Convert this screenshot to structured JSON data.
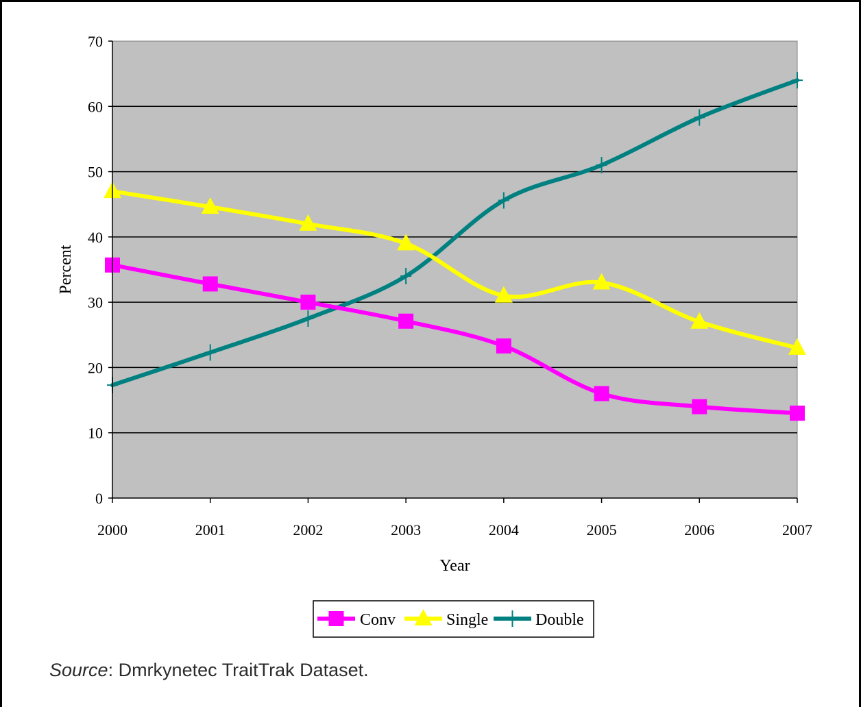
{
  "chart_data": {
    "type": "line",
    "title": "",
    "xlabel": "Year",
    "ylabel": "Percent",
    "ylim": [
      0,
      70
    ],
    "yticks": [
      0,
      10,
      20,
      30,
      40,
      50,
      60,
      70
    ],
    "categories": [
      "2000",
      "2001",
      "2002",
      "2003",
      "2004",
      "2005",
      "2006",
      "2007"
    ],
    "series": [
      {
        "name": "Conv",
        "color": "#ff00ff",
        "marker": "square",
        "values": [
          35.7,
          32.8,
          30.0,
          27.1,
          23.3,
          16.0,
          14.0,
          13.0
        ]
      },
      {
        "name": "Single",
        "color": "#ffff00",
        "marker": "triangle",
        "values": [
          47.0,
          44.6,
          42.0,
          39.0,
          31.0,
          33.0,
          27.0,
          23.0
        ]
      },
      {
        "name": "Double",
        "color": "#008080",
        "marker": "plus",
        "values": [
          17.3,
          22.3,
          27.5,
          34.0,
          45.6,
          51.0,
          58.3,
          64.0
        ]
      }
    ],
    "plot_background": "#c0c0c0",
    "grid": true,
    "legend_position": "bottom"
  },
  "source": {
    "label": "Source",
    "text": ": Dmrkynetec TraitTrak Dataset."
  }
}
